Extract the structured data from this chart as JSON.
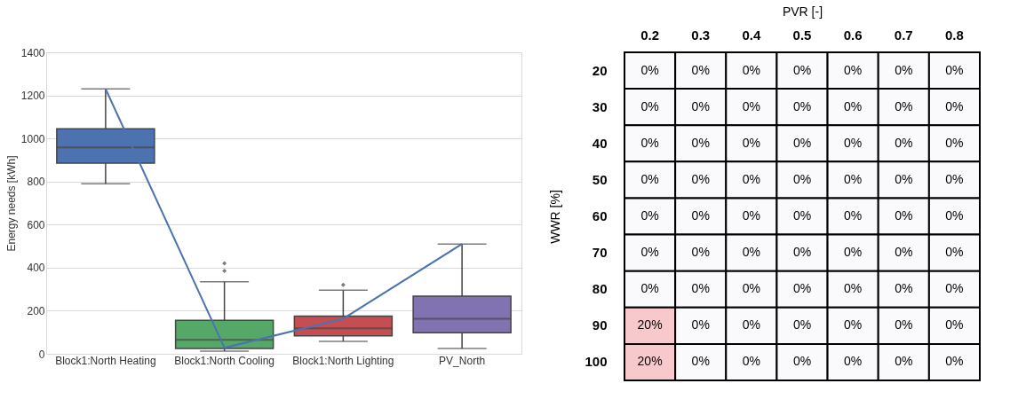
{
  "chart_data": [
    {
      "type": "box",
      "ylabel": "Energy needs [kWh]",
      "categories": [
        "Block1:North Heating",
        "Block1:North Cooling",
        "Block1:North Lighting",
        "PV_North"
      ],
      "boxes": [
        {
          "low": 790,
          "q1": 885,
          "median": 958,
          "q3": 1045,
          "high": 1230
        },
        {
          "low": 12,
          "q1": 25,
          "median": 65,
          "q3": 155,
          "high": 335,
          "outliers": [
            385,
            420
          ]
        },
        {
          "low": 58,
          "q1": 83,
          "median": 118,
          "q3": 175,
          "high": 295,
          "outliers": [
            320
          ]
        },
        {
          "low": 25,
          "q1": 98,
          "median": 163,
          "q3": 268,
          "high": 510
        }
      ],
      "colors": [
        "#4c72b0",
        "#55a868",
        "#c44e52",
        "#8172b2"
      ],
      "series": [
        {
          "type": "line",
          "color": "#4c72b0",
          "values": [
            1230,
            28,
            163,
            510
          ]
        }
      ],
      "ylim": [
        0,
        1400
      ],
      "yticks": [
        0,
        200,
        400,
        600,
        800,
        1000,
        1200,
        1400
      ],
      "grid": "y"
    },
    {
      "type": "heatmap",
      "xlabel": "PVR [-]",
      "ylabel": "WWR [%]",
      "categories": [
        "0.2",
        "0.3",
        "0.4",
        "0.5",
        "0.6",
        "0.7",
        "0.8"
      ],
      "y_categories": [
        "20",
        "30",
        "40",
        "50",
        "60",
        "70",
        "80",
        "90",
        "100"
      ],
      "cells": [
        [
          0,
          0,
          0,
          0,
          0,
          0,
          0
        ],
        [
          0,
          0,
          0,
          0,
          0,
          0,
          0
        ],
        [
          0,
          0,
          0,
          0,
          0,
          0,
          0
        ],
        [
          0,
          0,
          0,
          0,
          0,
          0,
          0
        ],
        [
          0,
          0,
          0,
          0,
          0,
          0,
          0
        ],
        [
          0,
          0,
          0,
          0,
          0,
          0,
          0
        ],
        [
          0,
          0,
          0,
          0,
          0,
          0,
          0
        ],
        [
          20,
          0,
          0,
          0,
          0,
          0,
          0
        ],
        [
          20,
          0,
          0,
          0,
          0,
          0,
          0
        ]
      ],
      "cell_labels": [
        [
          "0%",
          "0%",
          "0%",
          "0%",
          "0%",
          "0%",
          "0%"
        ],
        [
          "0%",
          "0%",
          "0%",
          "0%",
          "0%",
          "0%",
          "0%"
        ],
        [
          "0%",
          "0%",
          "0%",
          "0%",
          "0%",
          "0%",
          "0%"
        ],
        [
          "0%",
          "0%",
          "0%",
          "0%",
          "0%",
          "0%",
          "0%"
        ],
        [
          "0%",
          "0%",
          "0%",
          "0%",
          "0%",
          "0%",
          "0%"
        ],
        [
          "0%",
          "0%",
          "0%",
          "0%",
          "0%",
          "0%",
          "0%"
        ],
        [
          "0%",
          "0%",
          "0%",
          "0%",
          "0%",
          "0%",
          "0%"
        ],
        [
          "20%",
          "0%",
          "0%",
          "0%",
          "0%",
          "0%",
          "0%"
        ],
        [
          "20%",
          "0%",
          "0%",
          "0%",
          "0%",
          "0%",
          "0%"
        ]
      ],
      "colors": [
        "#fafafc",
        "#f8c9cc"
      ]
    }
  ]
}
